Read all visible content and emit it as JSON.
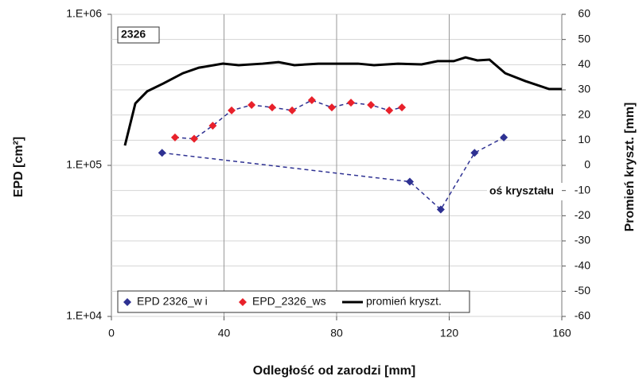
{
  "chart_data": {
    "type": "scatter",
    "annotations": [
      "2326",
      "oś kryształu"
    ],
    "x_label": "Odległość od zarodzi [mm]",
    "y_label": "EPD [cm²]",
    "y2_label": "Promień kryszt. [mm]",
    "xlim": [
      0,
      160
    ],
    "xticks": [
      0,
      40,
      80,
      120,
      160
    ],
    "ylim": [
      10000,
      1000000
    ],
    "log_y": true,
    "yticks": [
      {
        "value": 10000,
        "label": "1.E+04"
      },
      {
        "value": 100000,
        "label": "1.E+05"
      },
      {
        "value": 1000000,
        "label": "1.E+06"
      }
    ],
    "y2lim": [
      -60,
      60
    ],
    "y2ticks": [
      -60,
      -50,
      -40,
      -30,
      -20,
      -10,
      0,
      10,
      20,
      30,
      40,
      50,
      60
    ],
    "grid": true,
    "legend": "bottom",
    "series": [
      {
        "name": "EPD 2326_w i",
        "color": "#2e3192",
        "marker": "diamond",
        "line": "dashed",
        "x": [
          18,
          106,
          117,
          129,
          139.4
        ],
        "values": [
          121000,
          78000,
          51000,
          121000,
          153000
        ]
      },
      {
        "name": "EPD_2326_ws",
        "color": "#e8212b",
        "marker": "diamond",
        "line": "dashed",
        "x": [
          22.6,
          29.4,
          36,
          42.7,
          49.8,
          57.1,
          64.2,
          71.2,
          78.3,
          85.1,
          92.2,
          98.7,
          103.2
        ],
        "values": [
          153000,
          150000,
          183000,
          231000,
          251000,
          242000,
          231000,
          270000,
          242000,
          260000,
          251000,
          231000,
          242000
        ]
      },
      {
        "name": "promień kryszt.",
        "color": "#000000",
        "marker": "none",
        "line": "solid",
        "axis": "y2",
        "x": [
          4.8,
          8.5,
          12.7,
          18.4,
          25.4,
          31.1,
          39.6,
          45.2,
          53.7,
          59.4,
          65,
          73.5,
          87.6,
          93.3,
          101.8,
          110.2,
          115.9,
          121.6,
          125.8,
          130,
          134.3,
          139.9,
          147,
          155.5,
          160
        ],
        "values": [
          7.9,
          24.6,
          29.4,
          32.5,
          36.6,
          38.8,
          40.4,
          39.8,
          40.4,
          41,
          39.8,
          40.4,
          40.4,
          39.8,
          40.4,
          40.1,
          41.4,
          41.4,
          42.9,
          41.7,
          42,
          36.6,
          33.5,
          30.3,
          30.3
        ]
      }
    ]
  }
}
